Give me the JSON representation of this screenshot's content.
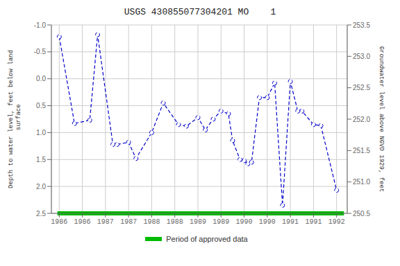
{
  "chart_data": {
    "type": "line",
    "title": "USGS 430855077304201 MO    1",
    "y_label": "Depth to water level, feet below land\n surface",
    "y2_label": "Groundwater level above NGVD 1929, feet",
    "x": [
      1985.92,
      1986.25,
      1986.58,
      1986.75,
      1987.08,
      1987.17,
      1987.42,
      1987.58,
      1987.92,
      1988.17,
      1988.5,
      1988.67,
      1988.92,
      1989.08,
      1989.25,
      1989.42,
      1989.58,
      1989.67,
      1989.83,
      1989.92,
      1990.0,
      1990.08,
      1990.25,
      1990.42,
      1990.58,
      1990.75,
      1990.92,
      1991.08,
      1991.17,
      1991.42,
      1991.58,
      1991.92
    ],
    "series": [
      {
        "color": "#0000CC",
        "marker": "circle",
        "line_style": "dashed",
        "values": [
          -0.78,
          0.83,
          0.77,
          -0.82,
          1.22,
          1.22,
          1.18,
          1.48,
          1.0,
          0.45,
          0.85,
          0.88,
          0.72,
          0.95,
          0.75,
          0.6,
          0.65,
          1.15,
          1.5,
          1.52,
          1.58,
          1.55,
          0.35,
          0.35,
          0.08,
          2.35,
          0.05,
          0.6,
          0.6,
          0.85,
          0.87,
          2.07
        ]
      }
    ],
    "spans": [
      {
        "name": "Period of approved data",
        "color": "#00bb00",
        "x": [
          1985.88,
          1992.08
        ]
      }
    ],
    "xlim": [
      1985.75,
      1992.15
    ],
    "xticks": [
      {
        "value": 1985.92,
        "label": "1986"
      },
      {
        "value": 1986.42,
        "label": "1986"
      },
      {
        "value": 1986.92,
        "label": "1987"
      },
      {
        "value": 1987.42,
        "label": "1987"
      },
      {
        "value": 1987.92,
        "label": "1988"
      },
      {
        "value": 1988.42,
        "label": "1988"
      },
      {
        "value": 1988.92,
        "label": "1989"
      },
      {
        "value": 1989.42,
        "label": "1989"
      },
      {
        "value": 1989.92,
        "label": "1990"
      },
      {
        "value": 1990.42,
        "label": "1990"
      },
      {
        "value": 1990.92,
        "label": "1991"
      },
      {
        "value": 1991.42,
        "label": "1991"
      },
      {
        "value": 1991.92,
        "label": "1992"
      }
    ],
    "ylim": [
      2.5,
      -1.0
    ],
    "yticks": [
      {
        "value": -1.0,
        "label": "-1.0"
      },
      -0.5,
      {
        "value": 0.0,
        "label": "0.0"
      },
      0.5,
      {
        "value": 1.0,
        "label": "1.0"
      },
      1.5,
      {
        "value": 2.0,
        "label": "2.0"
      },
      2.5
    ],
    "y2lim": [
      250.5,
      253.5
    ],
    "y2ticks": [
      250.5,
      {
        "value": 251.0,
        "label": "251.0"
      },
      251.5,
      {
        "value": 252.0,
        "label": "252.0"
      },
      252.5,
      {
        "value": 253.0,
        "label": "253.0"
      },
      253.5
    ],
    "grid": true
  }
}
